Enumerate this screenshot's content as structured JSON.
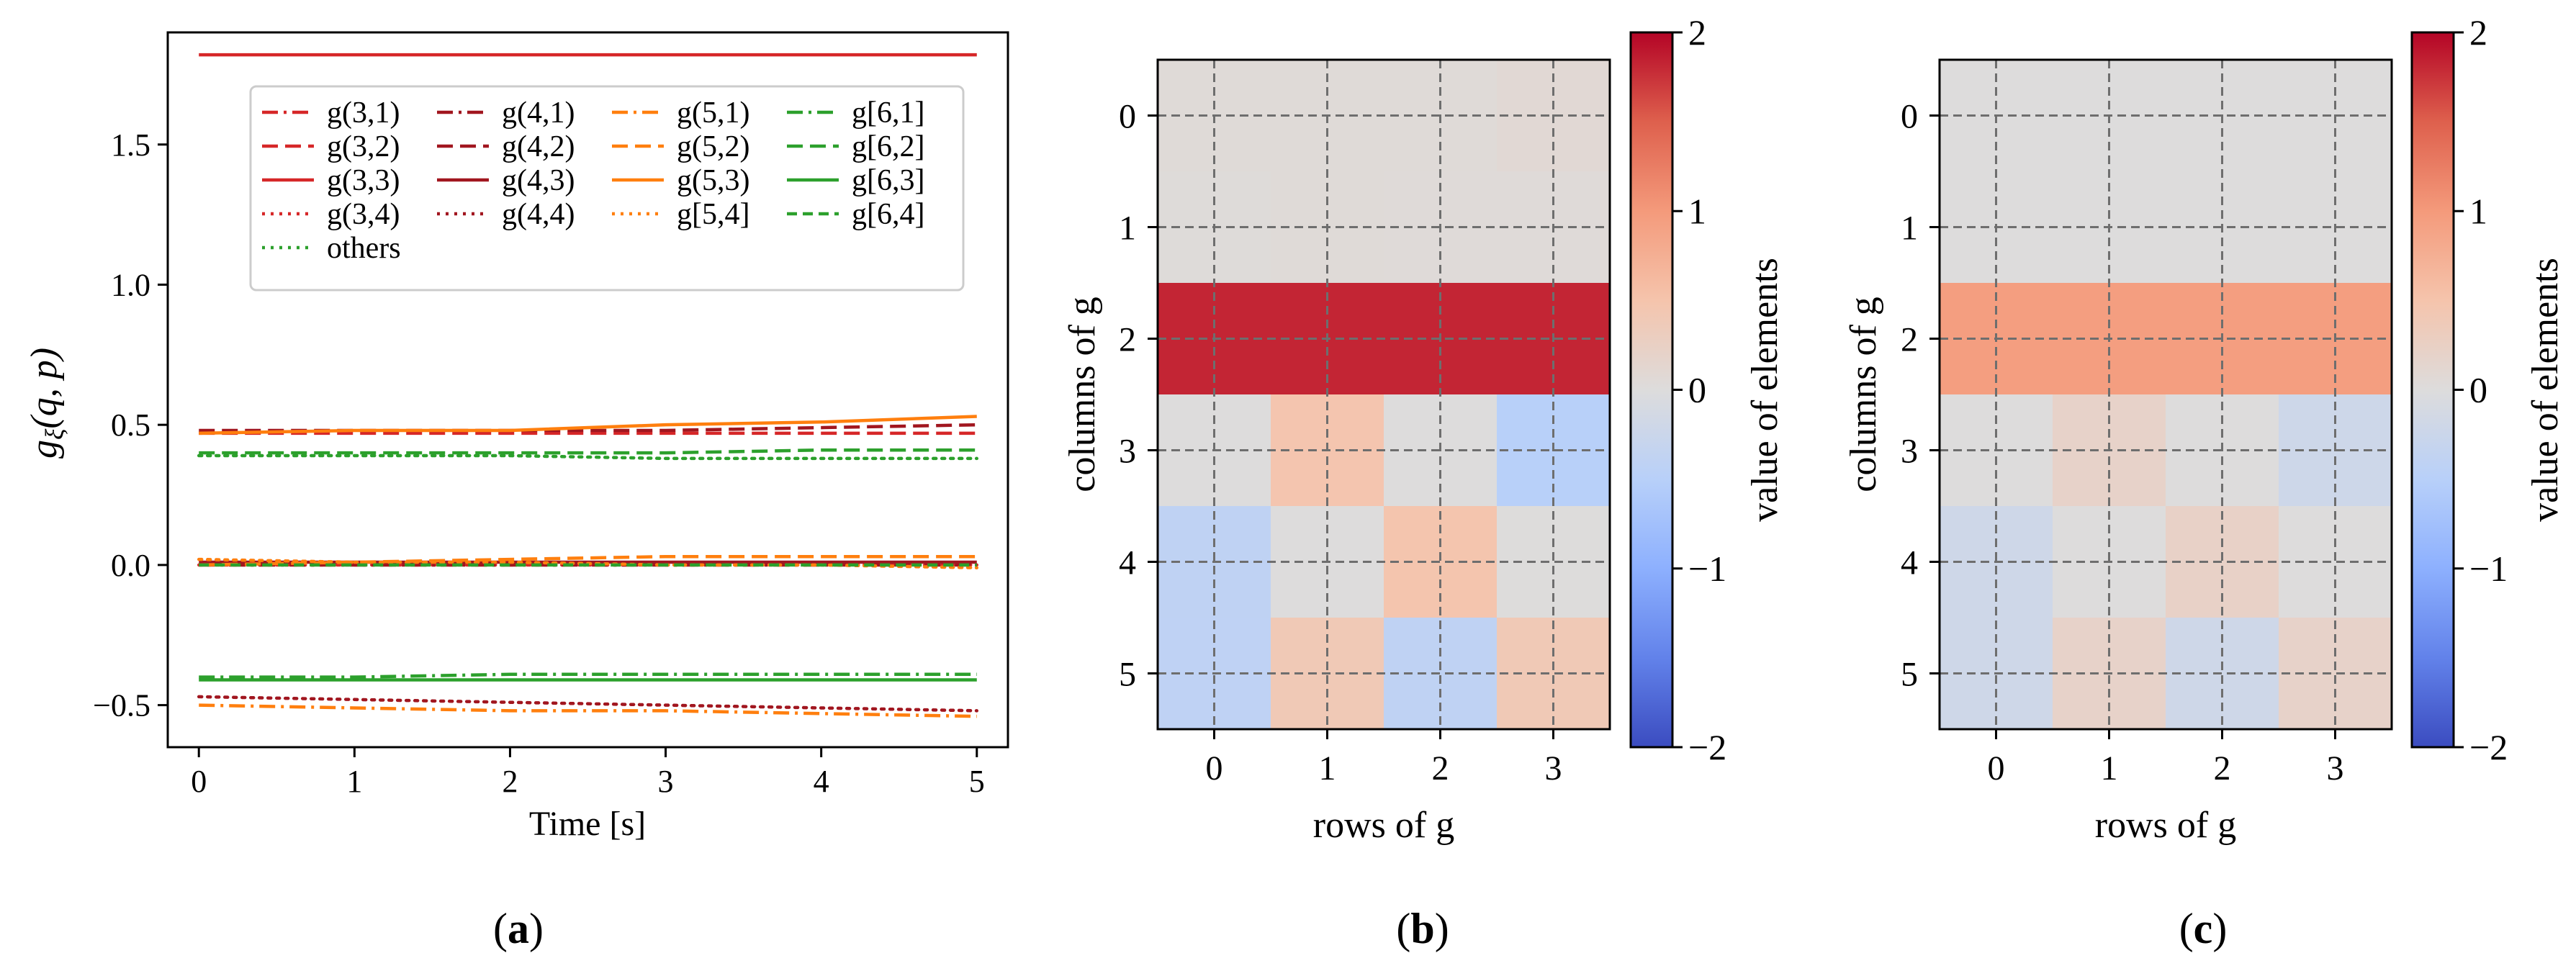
{
  "panels": {
    "a": {
      "caption_letter": "a",
      "caption_open": "(",
      "caption_close": ")"
    },
    "b": {
      "caption_letter": "b",
      "caption_open": "(",
      "caption_close": ")"
    },
    "c": {
      "caption_letter": "c",
      "caption_open": "(",
      "caption_close": ")"
    }
  },
  "chart_data": [
    {
      "type": "line",
      "panel": "a",
      "xlabel": "Time [s]",
      "ylabel": "g_ξ(q, p)",
      "xlim": [
        -0.2,
        5.2
      ],
      "ylim": [
        -0.65,
        1.9
      ],
      "xticks": [
        0,
        1,
        2,
        3,
        4,
        5
      ],
      "xtick_labels": [
        "0",
        "1",
        "2",
        "3",
        "4",
        "5"
      ],
      "yticks": [
        -0.5,
        0.0,
        0.5,
        1.0,
        1.5
      ],
      "ytick_labels": [
        "−0.5",
        "0.0",
        "0.5",
        "1.0",
        "1.5"
      ],
      "grid": false,
      "legend_position": "top-center",
      "x": [
        0,
        1,
        2,
        3,
        4,
        5
      ],
      "series": [
        {
          "name": "g(3,1)",
          "color": "#d62728",
          "dash": "dashdot",
          "values": [
            0.0,
            0.0,
            0.0,
            0.0,
            0.0,
            0.0
          ]
        },
        {
          "name": "g(3,2)",
          "color": "#d62728",
          "dash": "dashed",
          "values": [
            0.47,
            0.47,
            0.47,
            0.47,
            0.47,
            0.47
          ]
        },
        {
          "name": "g(3,3)",
          "color": "#d62728",
          "dash": "solid",
          "values": [
            1.82,
            1.82,
            1.82,
            1.82,
            1.82,
            1.82
          ]
        },
        {
          "name": "g(3,4)",
          "color": "#d62728",
          "dash": "dotted",
          "values": [
            0.0,
            0.0,
            0.0,
            0.0,
            0.0,
            0.0
          ]
        },
        {
          "name": "g(4,1)",
          "color": "#a1161f",
          "dash": "dashdot",
          "values": [
            0.0,
            0.0,
            0.0,
            0.0,
            0.0,
            0.0
          ]
        },
        {
          "name": "g(4,2)",
          "color": "#a1161f",
          "dash": "dashed",
          "values": [
            0.48,
            0.48,
            0.48,
            0.48,
            0.49,
            0.5
          ]
        },
        {
          "name": "g(4,3)",
          "color": "#a1161f",
          "dash": "solid",
          "values": [
            0.01,
            0.01,
            0.01,
            0.01,
            0.01,
            0.01
          ]
        },
        {
          "name": "g(4,4)",
          "color": "#a1161f",
          "dash": "dotted",
          "values": [
            -0.47,
            -0.48,
            -0.49,
            -0.5,
            -0.51,
            -0.52
          ]
        },
        {
          "name": "g(5,1)",
          "color": "#ff7f0e",
          "dash": "dashdot",
          "values": [
            -0.5,
            -0.51,
            -0.52,
            -0.52,
            -0.53,
            -0.54
          ]
        },
        {
          "name": "g(5,2)",
          "color": "#ff7f0e",
          "dash": "dashed",
          "values": [
            0.0,
            0.01,
            0.02,
            0.03,
            0.03,
            0.03
          ]
        },
        {
          "name": "g(5,3)",
          "color": "#ff7f0e",
          "dash": "solid",
          "values": [
            0.47,
            0.48,
            0.48,
            0.5,
            0.51,
            0.53
          ]
        },
        {
          "name": "g[5,4]",
          "color": "#ff7f0e",
          "dash": "dotted",
          "values": [
            0.02,
            0.01,
            0.01,
            0.0,
            0.0,
            -0.01
          ]
        },
        {
          "name": "g[6,1]",
          "color": "#2ca02c",
          "dash": "dashdot",
          "values": [
            -0.4,
            -0.4,
            -0.39,
            -0.39,
            -0.39,
            -0.39
          ]
        },
        {
          "name": "g[6,2]",
          "color": "#2ca02c",
          "dash": "dashed",
          "values": [
            0.4,
            0.4,
            0.4,
            0.4,
            0.41,
            0.41
          ]
        },
        {
          "name": "g[6,3]",
          "color": "#2ca02c",
          "dash": "solid",
          "values": [
            -0.41,
            -0.41,
            -0.41,
            -0.41,
            -0.41,
            -0.41
          ]
        },
        {
          "name": "g[6,4]",
          "color": "#2ca02c",
          "dash": "dashed2",
          "values": [
            0.0,
            0.0,
            0.0,
            0.0,
            0.0,
            0.0
          ]
        },
        {
          "name": "others",
          "color": "#2ca02c",
          "dash": "dotted",
          "values": [
            0.39,
            0.39,
            0.39,
            0.38,
            0.38,
            0.38
          ]
        }
      ]
    },
    {
      "type": "heatmap",
      "panel": "b",
      "xlabel": "rows of g",
      "ylabel": "columns of g",
      "colorbar_label": "value of elements",
      "x_categories": [
        "0",
        "1",
        "2",
        "3"
      ],
      "y_categories": [
        "0",
        "1",
        "2",
        "3",
        "4",
        "5"
      ],
      "vmin": -2,
      "vmax": 2,
      "colorbar_ticks": [
        2,
        1,
        0,
        -1,
        -2
      ],
      "colorbar_tick_labels": [
        "2",
        "1",
        "0",
        "−1",
        "−2"
      ],
      "grid": true,
      "values": [
        [
          0.05,
          0.05,
          0.05,
          0.08
        ],
        [
          0.03,
          0.05,
          0.04,
          0.04
        ],
        [
          1.82,
          1.82,
          1.82,
          1.82
        ],
        [
          0.0,
          0.47,
          0.0,
          -0.5
        ],
        [
          -0.4,
          0.0,
          0.48,
          0.01
        ],
        [
          -0.41,
          0.4,
          -0.4,
          0.4
        ]
      ]
    },
    {
      "type": "heatmap",
      "panel": "c",
      "xlabel": "rows of g",
      "ylabel": "columns of g",
      "colorbar_label": "value of elements",
      "x_categories": [
        "0",
        "1",
        "2",
        "3"
      ],
      "y_categories": [
        "0",
        "1",
        "2",
        "3",
        "4",
        "5"
      ],
      "vmin": -2,
      "vmax": 2,
      "colorbar_ticks": [
        2,
        1,
        0,
        -1,
        -2
      ],
      "colorbar_tick_labels": [
        "2",
        "1",
        "0",
        "−1",
        "−2"
      ],
      "grid": true,
      "values": [
        [
          0.0,
          0.0,
          0.0,
          0.0
        ],
        [
          0.0,
          0.0,
          0.0,
          0.0
        ],
        [
          0.95,
          0.95,
          0.95,
          0.95
        ],
        [
          0.0,
          0.2,
          0.0,
          -0.22
        ],
        [
          -0.2,
          0.0,
          0.22,
          0.0
        ],
        [
          -0.2,
          0.2,
          -0.2,
          0.2
        ]
      ]
    }
  ]
}
